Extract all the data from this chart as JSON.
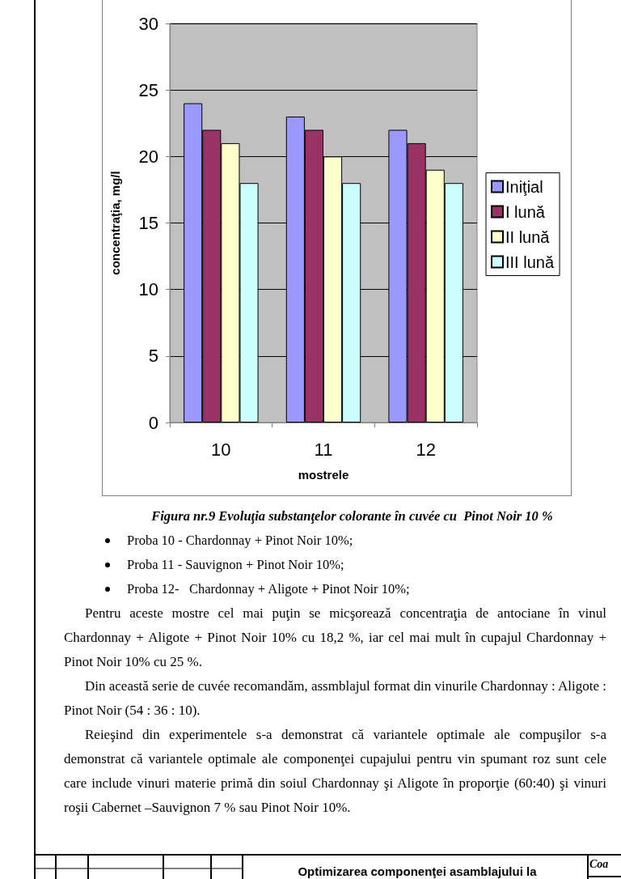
{
  "chart_data": {
    "type": "bar",
    "title": "Figura nr.9 Evoluţia substanţelor colorante în cuvée cu  Pinot Noir 10 %",
    "xlabel": "mostrele",
    "ylabel": "concentraţia, mg/l",
    "categories": [
      "10",
      "11",
      "12"
    ],
    "series": [
      {
        "name": "Iniţial",
        "color": "#9999ff",
        "values": [
          24,
          23,
          22
        ]
      },
      {
        "name": "I lună",
        "color": "#993366",
        "values": [
          22,
          22,
          21
        ]
      },
      {
        "name": "II lună",
        "color": "#ffffcc",
        "values": [
          21,
          20,
          19
        ]
      },
      {
        "name": "III lună",
        "color": "#ccffff",
        "values": [
          18,
          18,
          18
        ]
      }
    ],
    "ylim": [
      0,
      30
    ],
    "yticks": [
      0,
      5,
      10,
      15,
      20,
      25,
      30
    ],
    "grid": "y",
    "legend": "right",
    "annotations": [
      "Proba 10 - Chardonnay + Pinot Noir 10%;",
      "Proba 11 - Sauvignon + Pinot Noir 10%;",
      "Proba 12-   Chardonnay + Aligote + Pinot Noir 10%;",
      "Pentru aceste mostre cel mai puţin se micşorează concentraţia de antociane în vinul Chardonnay + Aligote + Pinot Noir 10% cu 18,2 %, iar cel mai mult în cupajul Chardonnay + Pinot Noir 10% cu 25 %.",
      "Din această serie de cuvée recomandăm, assmblajul format din vinurile Chardonnay : Aligote : Pinot Noir (54 : 36 : 10).",
      "Reieşind din experimentele s-a demonstrat că variantele optimale ale compuşilor s-a demonstrat că variantele optimale ale componenţei cupajului pentru vin spumant roz sunt cele care include vinuri materie primă din soiul Chardonnay şi Aligote  în proporţie (60:40) şi vinuri roşii Cabernet –Sauvignon 7 % sau Pinot Noir 10%.",
      "Optimizarea componenţei asamblajului la",
      "Coa"
    ]
  }
}
